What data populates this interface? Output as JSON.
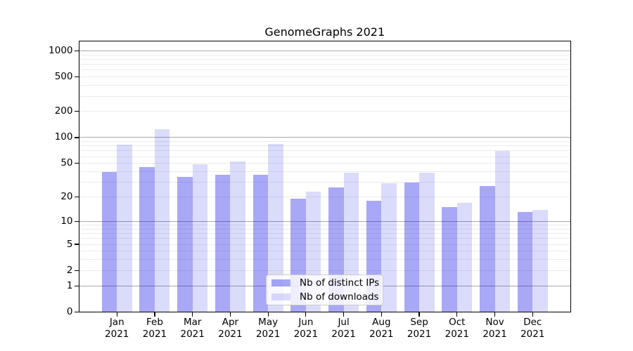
{
  "title": "GenomeGraphs 2021",
  "colors": {
    "bar_distinct_ips": "rgba(0,0,230,0.34)",
    "bar_downloads": "rgba(0,0,230,0.14)",
    "major_grid": "#a9a9a9",
    "minor_grid": "#ebebeb",
    "axis": "#000000",
    "background": "#ffffff"
  },
  "chart_data": {
    "type": "bar",
    "title": "GenomeGraphs 2021",
    "categories": [
      "Jan",
      "Feb",
      "Mar",
      "Apr",
      "May",
      "Jun",
      "Jul",
      "Aug",
      "Sep",
      "Oct",
      "Nov",
      "Dec"
    ],
    "category_year": "2021",
    "series": [
      {
        "name": "Nb of distinct IPs",
        "color": "rgba(0,0,230,0.34)",
        "values": [
          40,
          45,
          35,
          37,
          37,
          19,
          26,
          18,
          30,
          15,
          27,
          13
        ]
      },
      {
        "name": "Nb of downloads",
        "color": "rgba(0,0,230,0.14)",
        "values": [
          83,
          126,
          49,
          53,
          85,
          23,
          39,
          29,
          39,
          17,
          70,
          14
        ]
      }
    ],
    "xlabel": "",
    "ylabel": "",
    "yscale": "log10(1+y)",
    "ylim": [
      0,
      1300
    ],
    "yticks": [
      0,
      1,
      2,
      5,
      10,
      20,
      50,
      100,
      200,
      500,
      1000
    ],
    "grid": {
      "major_at": [
        1,
        10,
        100,
        1000
      ],
      "minor_at": [
        2,
        3,
        4,
        5,
        6,
        7,
        8,
        9,
        20,
        30,
        40,
        50,
        60,
        70,
        80,
        90,
        200,
        300,
        400,
        500,
        600,
        700,
        800,
        900
      ]
    },
    "legend": {
      "position": "lower center",
      "entries": [
        "Nb of distinct IPs",
        "Nb of downloads"
      ]
    }
  }
}
